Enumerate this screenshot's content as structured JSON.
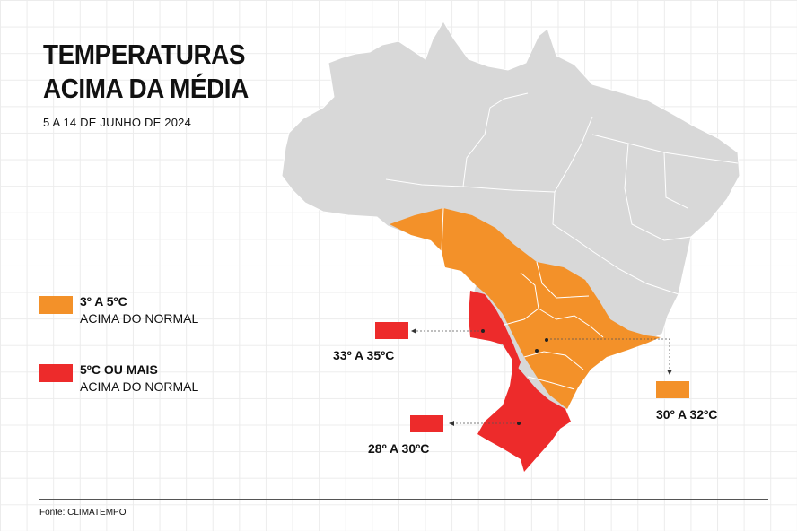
{
  "title_line1": "TEMPERATURAS",
  "title_line2": "ACIMA DA MÉDIA",
  "subtitle": "5 A 14 DE JUNHO DE 2024",
  "colors": {
    "country": "#d8d8d8",
    "borders": "#ffffff",
    "orange": "#f39129",
    "red": "#ed2b2b"
  },
  "legend": [
    {
      "label": "3º A 5ºC",
      "sub": "ACIMA DO NORMAL",
      "color": "#f39129"
    },
    {
      "label": "5ºC OU MAIS",
      "sub": "ACIMA DO NORMAL",
      "color": "#ed2b2b"
    }
  ],
  "callouts": [
    {
      "label": "33º A 35ºC",
      "color": "#ed2b2b"
    },
    {
      "label": "30º A 32ºC",
      "color": "#f39129"
    },
    {
      "label": "28º A 30ºC",
      "color": "#ed2b2b"
    }
  ],
  "source": "Fonte: CLIMATEMPO"
}
